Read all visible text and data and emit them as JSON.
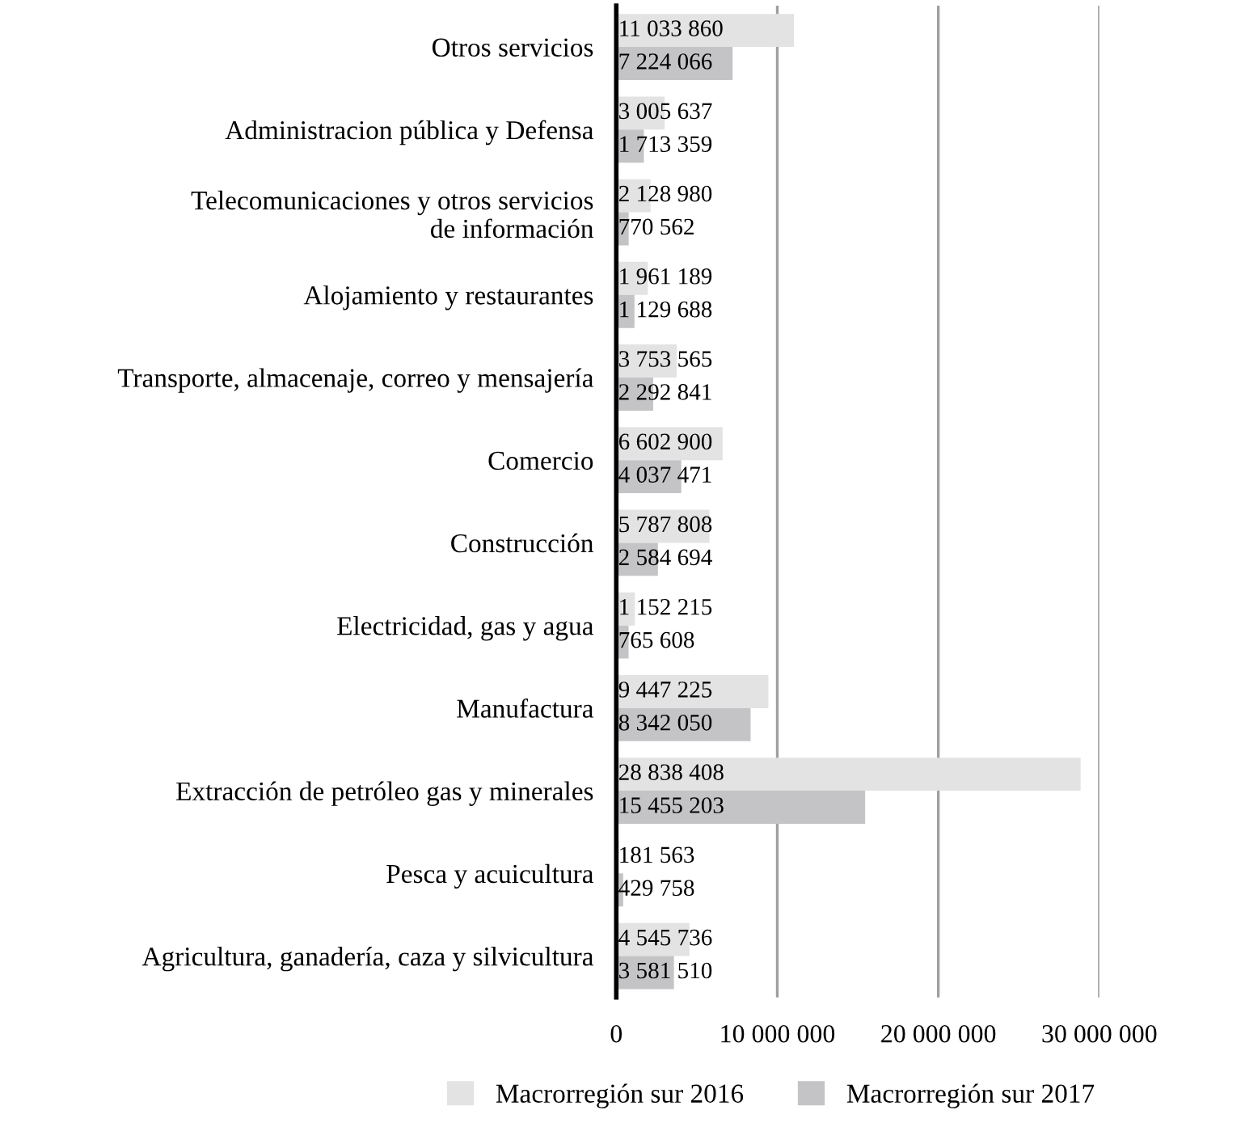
{
  "chart_data": {
    "type": "bar",
    "orientation": "horizontal",
    "categories": [
      "Otros servicios",
      "Administracion pública y Defensa",
      "Telecomunicaciones y otros servicios\nde información",
      "Alojamiento y restaurantes",
      "Transporte, almacenaje, correo y mensajería",
      "Comercio",
      "Construcción",
      "Electricidad, gas y agua",
      "Manufactura",
      "Extracción de petróleo gas y minerales",
      "Pesca y acuicultura",
      "Agricultura, ganadería, caza y silvicultura"
    ],
    "series": [
      {
        "name": "Macrorregión sur 2016",
        "color": "#e3e3e3",
        "values": [
          11033860,
          3005637,
          2128980,
          1961189,
          3753565,
          6602900,
          5787808,
          1152215,
          9447225,
          28838408,
          181563,
          4545736
        ],
        "value_labels": [
          "11 033 860",
          "3 005 637",
          "2 128 980",
          "1 961 189",
          "3 753 565",
          "6 602 900",
          "5 787 808",
          "1 152 215",
          "9 447 225",
          "28 838 408",
          "181 563",
          "4 545 736"
        ]
      },
      {
        "name": "Macrorregión sur 2017",
        "color": "#c4c4c6",
        "values": [
          7224066,
          1713359,
          770562,
          1129688,
          2292841,
          4037471,
          2584694,
          765608,
          8342050,
          15455203,
          429758,
          3581510
        ],
        "value_labels": [
          "7 224 066",
          "1 713 359",
          "770 562",
          "1 129 688",
          "2 292 841",
          "4 037 471",
          "2 584 694",
          "765 608",
          "8 342 050",
          "15 455 203",
          "429 758",
          "3 581 510"
        ]
      }
    ],
    "xlim": [
      0,
      30000000
    ],
    "xticks": [
      0,
      {
        "value": 10000000,
        "label": "10 000 000"
      },
      {
        "value": 20000000,
        "label": "20 000 000"
      },
      {
        "value": 30000000,
        "label": "30 000 000"
      }
    ],
    "grid": "x",
    "legend": "bottom"
  }
}
